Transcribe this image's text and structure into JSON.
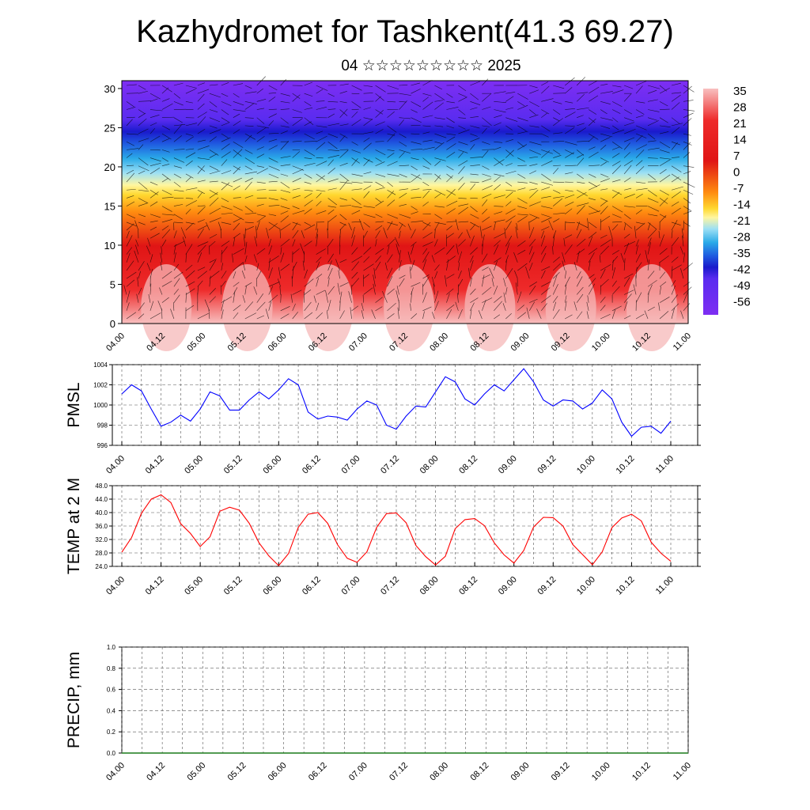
{
  "title": "Kazhydromet for Tashkent(41.3 69.27)",
  "subtitle": "04 ☆☆☆☆☆☆☆☆☆ 2025",
  "chart_data": [
    {
      "type": "heatmap",
      "description_label": "",
      "y_ticks": [
        "0",
        "5",
        "10",
        "15",
        "20",
        "25",
        "30"
      ],
      "ylim": [
        0,
        31
      ],
      "x_ticks": [
        "04.00",
        "04.12",
        "05.00",
        "05.12",
        "06.00",
        "06.12",
        "07.00",
        "07.12",
        "08.00",
        "08.12",
        "09.00",
        "09.12",
        "10.00",
        "10.12",
        "11.00"
      ],
      "colorbar_labels": [
        "35",
        "28",
        "21",
        "14",
        "7",
        "0",
        "-7",
        "-14",
        "-21",
        "-28",
        "-35",
        "-42",
        "-49",
        "-56"
      ],
      "overlay": "wind vectors"
    },
    {
      "type": "line",
      "ylabel": "PMSL",
      "ylim": [
        996,
        1004
      ],
      "y_ticks": [
        "996",
        "998",
        "1000",
        "1002",
        "1004"
      ],
      "x_ticks": [
        "04.00",
        "04.12",
        "05.00",
        "05.12",
        "06.00",
        "06.12",
        "07.00",
        "07.12",
        "08.00",
        "08.12",
        "09.00",
        "09.12",
        "10.00",
        "10.12",
        "11.00"
      ],
      "color": "#0000ff",
      "values": [
        1001.1,
        1002.0,
        1001.4,
        999.6,
        997.9,
        998.3,
        999.0,
        998.4,
        999.6,
        1001.3,
        1000.9,
        999.5,
        999.5,
        1000.5,
        1001.3,
        1000.6,
        1001.5,
        1002.6,
        1002.0,
        999.3,
        998.6,
        998.9,
        998.8,
        998.5,
        999.6,
        1000.4,
        1000.0,
        998.0,
        997.6,
        998.9,
        999.9,
        999.8,
        1001.3,
        1002.8,
        1002.3,
        1000.6,
        1000.0,
        1001.1,
        1002.0,
        1001.4,
        1002.5,
        1003.6,
        1002.3,
        1000.5,
        999.9,
        1000.5,
        1000.4,
        999.6,
        1000.2,
        1001.5,
        1000.6,
        998.3,
        996.9,
        997.8,
        997.9,
        997.2,
        998.4
      ]
    },
    {
      "type": "line",
      "ylabel": "TEMP at 2 M",
      "ylim": [
        24,
        48
      ],
      "y_ticks": [
        "24.0",
        "28.0",
        "32.0",
        "36.0",
        "40.0",
        "44.0",
        "48.0"
      ],
      "x_ticks": [
        "04.00",
        "04.12",
        "05.00",
        "05.12",
        "06.00",
        "06.12",
        "07.00",
        "07.12",
        "08.00",
        "08.12",
        "09.00",
        "09.12",
        "10.00",
        "10.12",
        "11.00"
      ],
      "color": "#ff0000",
      "values": [
        28.2,
        32.6,
        39.8,
        44.0,
        45.3,
        43.0,
        36.7,
        33.8,
        29.9,
        32.8,
        40.4,
        41.6,
        40.7,
        36.8,
        31.0,
        27.1,
        24.2,
        27.8,
        35.6,
        39.5,
        40.0,
        36.8,
        30.5,
        26.4,
        25.2,
        28.3,
        35.6,
        39.7,
        39.9,
        37.0,
        30.2,
        26.9,
        24.4,
        27.0,
        35.2,
        37.9,
        38.2,
        36.1,
        31.0,
        27.4,
        25.0,
        28.7,
        35.7,
        38.6,
        38.5,
        36.0,
        30.5,
        27.5,
        24.5,
        28.3,
        35.5,
        38.4,
        39.5,
        37.5,
        31.2,
        27.9,
        25.5
      ]
    },
    {
      "type": "line",
      "ylabel": "PRECIP, mm",
      "ylim": [
        0.0,
        1.0
      ],
      "y_ticks": [
        "0.0",
        "0.2",
        "0.4",
        "0.6",
        "0.8",
        "1.0"
      ],
      "x_ticks": [
        "04.00",
        "04.12",
        "05.00",
        "05.12",
        "06.00",
        "06.12",
        "07.00",
        "07.12",
        "08.00",
        "08.12",
        "09.00",
        "09.12",
        "10.00",
        "10.12",
        "11.00"
      ],
      "color": "#1a7a1a",
      "values": [
        0,
        0,
        0,
        0,
        0,
        0,
        0,
        0,
        0,
        0,
        0,
        0,
        0,
        0,
        0,
        0,
        0,
        0,
        0,
        0,
        0,
        0,
        0,
        0,
        0,
        0,
        0,
        0,
        0,
        0,
        0,
        0,
        0,
        0,
        0,
        0,
        0,
        0,
        0,
        0,
        0,
        0,
        0,
        0,
        0,
        0,
        0,
        0,
        0,
        0,
        0,
        0,
        0,
        0,
        0,
        0,
        0
      ]
    }
  ]
}
